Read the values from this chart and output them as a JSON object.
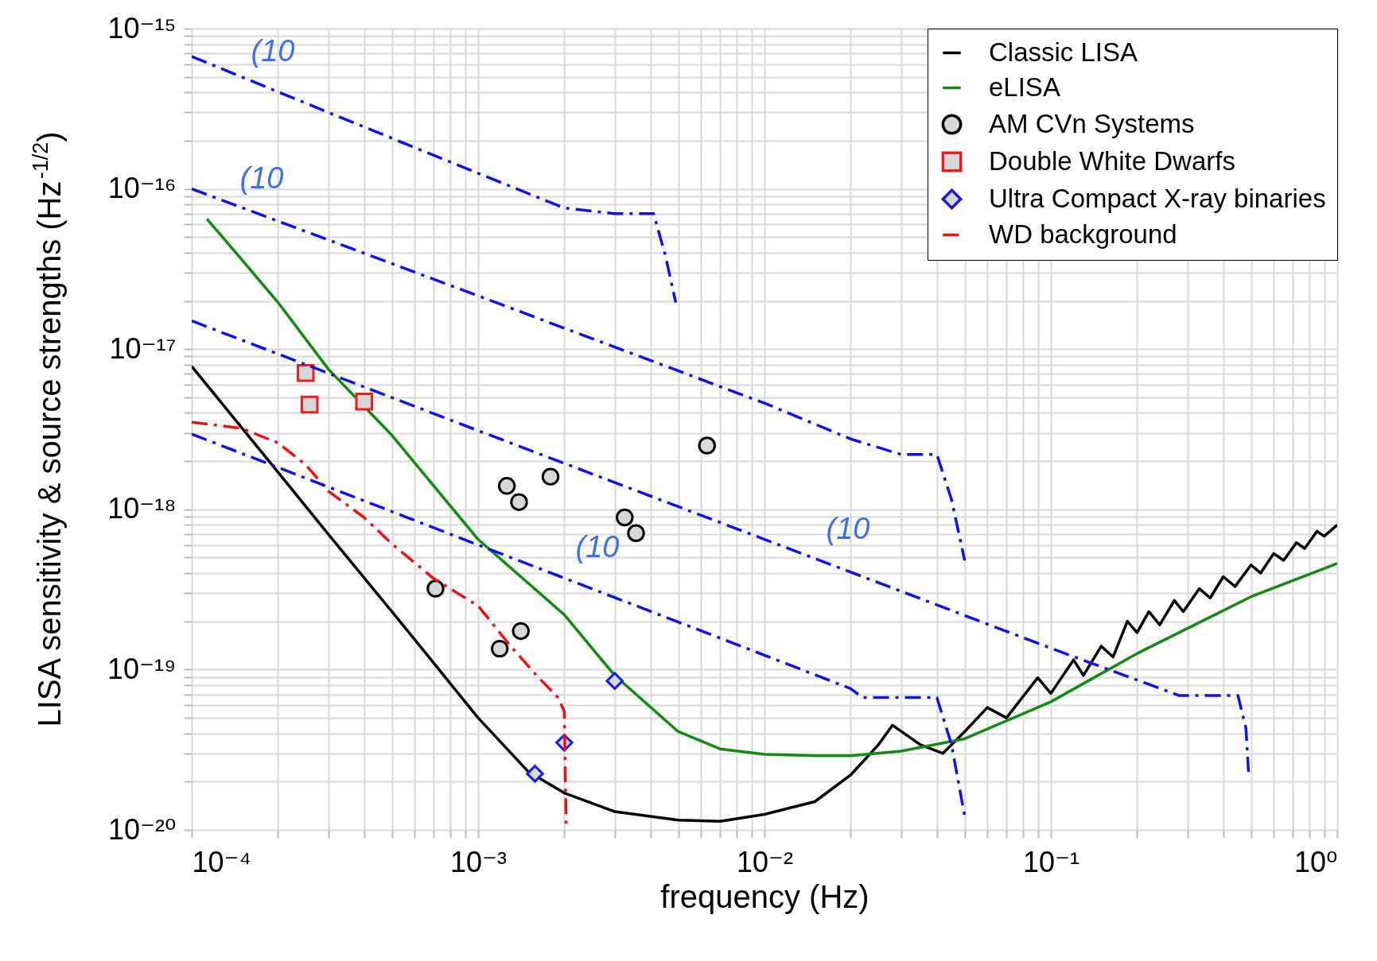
{
  "chart_data": {
    "type": "line",
    "xlabel": "frequency (Hz)",
    "ylabel": "LISA sensitivity & source strengths (Hz$^{-1/2}$)",
    "log": "xy",
    "grid": true,
    "legend": "top right",
    "xlim": [
      0.0001,
      1
    ],
    "ylim": [
      1e-20,
      1e-15
    ],
    "xticks": [
      {
        "value": 0.0001,
        "label": "10⁻⁴"
      },
      {
        "value": 0.0002,
        "label": null
      },
      {
        "value": 0.0003,
        "label": null
      },
      {
        "value": 0.0004,
        "label": null
      },
      {
        "value": 0.0005,
        "label": null
      },
      {
        "value": 0.0006,
        "label": null
      },
      {
        "value": 0.0007,
        "label": null
      },
      {
        "value": 0.0008,
        "label": null
      },
      {
        "value": 0.0009,
        "label": null
      },
      {
        "value": 0.001,
        "label": "10⁻³"
      },
      {
        "value": 0.002,
        "label": null
      },
      {
        "value": 0.003,
        "label": null
      },
      {
        "value": 0.004,
        "label": null
      },
      {
        "value": 0.005,
        "label": null
      },
      {
        "value": 0.006,
        "label": null
      },
      {
        "value": 0.007,
        "label": null
      },
      {
        "value": 0.008,
        "label": null
      },
      {
        "value": 0.009,
        "label": null
      },
      {
        "value": 0.01,
        "label": "10⁻²"
      },
      {
        "value": 0.02,
        "label": null
      },
      {
        "value": 0.03,
        "label": null
      },
      {
        "value": 0.04,
        "label": null
      },
      {
        "value": 0.05,
        "label": null
      },
      {
        "value": 0.06,
        "label": null
      },
      {
        "value": 0.07,
        "label": null
      },
      {
        "value": 0.08,
        "label": null
      },
      {
        "value": 0.09,
        "label": null
      },
      {
        "value": 0.1,
        "label": "10⁻¹"
      },
      {
        "value": 0.2,
        "label": null
      },
      {
        "value": 0.3,
        "label": null
      },
      {
        "value": 0.4,
        "label": null
      },
      {
        "value": 0.5,
        "label": null
      },
      {
        "value": 0.6,
        "label": null
      },
      {
        "value": 0.7,
        "label": null
      },
      {
        "value": 0.8,
        "label": null
      },
      {
        "value": 0.9,
        "label": null
      },
      {
        "value": 1,
        "label": "10⁰"
      }
    ],
    "yticks": [
      {
        "value": 1e-20,
        "label": "10⁻²⁰"
      },
      {
        "value": 2e-20,
        "label": null
      },
      {
        "value": 3e-20,
        "label": null
      },
      {
        "value": 4e-20,
        "label": null
      },
      {
        "value": 5e-20,
        "label": null
      },
      {
        "value": 6e-20,
        "label": null
      },
      {
        "value": 7e-20,
        "label": null
      },
      {
        "value": 8e-20,
        "label": null
      },
      {
        "value": 9e-20,
        "label": null
      },
      {
        "value": 1e-19,
        "label": "10⁻¹⁹"
      },
      {
        "value": 2e-19,
        "label": null
      },
      {
        "value": 3e-19,
        "label": null
      },
      {
        "value": 4e-19,
        "label": null
      },
      {
        "value": 5e-19,
        "label": null
      },
      {
        "value": 6e-19,
        "label": null
      },
      {
        "value": 7e-19,
        "label": null
      },
      {
        "value": 8e-19,
        "label": null
      },
      {
        "value": 9e-19,
        "label": null
      },
      {
        "value": 1e-18,
        "label": "10⁻¹⁸"
      },
      {
        "value": 2e-18,
        "label": null
      },
      {
        "value": 3e-18,
        "label": null
      },
      {
        "value": 4e-18,
        "label": null
      },
      {
        "value": 5e-18,
        "label": null
      },
      {
        "value": 6e-18,
        "label": null
      },
      {
        "value": 7e-18,
        "label": null
      },
      {
        "value": 8e-18,
        "label": null
      },
      {
        "value": 9e-18,
        "label": null
      },
      {
        "value": 1e-17,
        "label": "10⁻¹⁷"
      },
      {
        "value": 2e-17,
        "label": null
      },
      {
        "value": 3e-17,
        "label": null
      },
      {
        "value": 4e-17,
        "label": null
      },
      {
        "value": 5e-17,
        "label": null
      },
      {
        "value": 6e-17,
        "label": null
      },
      {
        "value": 7e-17,
        "label": null
      },
      {
        "value": 8e-17,
        "label": null
      },
      {
        "value": 9e-17,
        "label": null
      },
      {
        "value": 1e-16,
        "label": "10⁻¹⁶"
      },
      {
        "value": 2e-16,
        "label": null
      },
      {
        "value": 3e-16,
        "label": null
      },
      {
        "value": 4e-16,
        "label": null
      },
      {
        "value": 5e-16,
        "label": null
      },
      {
        "value": 6e-16,
        "label": null
      },
      {
        "value": 7e-16,
        "label": null
      },
      {
        "value": 8e-16,
        "label": null
      },
      {
        "value": 9e-16,
        "label": null
      },
      {
        "value": 1e-15,
        "label": "10⁻¹⁵"
      }
    ],
    "series": [
      {
        "name": "Classic LISA",
        "color": "#000000",
        "line_style": "solid",
        "marker": "none",
        "x": [
          0.0001,
          0.0002,
          0.0003,
          0.0005,
          0.0007,
          0.001,
          0.0015,
          0.002,
          0.003,
          0.005,
          0.007,
          0.01,
          0.015,
          0.02,
          0.025,
          0.028,
          0.035,
          0.042,
          0.05,
          0.06,
          0.07,
          0.09,
          0.1,
          0.12,
          0.13,
          0.15,
          0.165,
          0.185,
          0.2,
          0.22,
          0.24,
          0.27,
          0.29,
          0.33,
          0.36,
          0.4,
          0.44,
          0.5,
          0.54,
          0.6,
          0.65,
          0.72,
          0.77,
          0.85,
          0.9,
          1
        ],
        "values": [
          7.8e-18,
          1.71e-18,
          7e-19,
          2.3e-19,
          1.1e-19,
          5e-20,
          2.3e-20,
          1.7e-20,
          1.3e-20,
          1.15e-20,
          1.13e-20,
          1.25e-20,
          1.5e-20,
          2.2e-20,
          3.4e-20,
          4.5e-20,
          3.4e-20,
          3e-20,
          4.1e-20,
          5.8e-20,
          5e-20,
          8.9e-20,
          7.1e-20,
          1.15e-19,
          9.2e-20,
          1.4e-19,
          1.2e-19,
          2e-19,
          1.7e-19,
          2.3e-19,
          1.9e-19,
          2.7e-19,
          2.3e-19,
          3.2e-19,
          2.8e-19,
          3.8e-19,
          3.3e-19,
          4.5e-19,
          4e-19,
          5.3e-19,
          4.8e-19,
          6.2e-19,
          5.7e-19,
          7.3e-19,
          6.8e-19,
          8e-19
        ]
      },
      {
        "name": "eLISA",
        "color": "#138a13",
        "line_style": "solid",
        "marker": "none",
        "x": [
          0.000113,
          0.00015,
          0.0002,
          0.0003,
          0.0005,
          0.001,
          0.002,
          0.003,
          0.005,
          0.007,
          0.01,
          0.015,
          0.02,
          0.03,
          0.05,
          0.1,
          0.2,
          0.5,
          1
        ],
        "values": [
          6.5e-17,
          3.6e-17,
          1.96e-17,
          7.5e-18,
          2.9e-18,
          6.5e-19,
          2.2e-19,
          9.2e-20,
          4.1e-20,
          3.2e-20,
          2.96e-20,
          2.9e-20,
          2.9e-20,
          3.1e-20,
          3.7e-20,
          6.3e-20,
          1.26e-19,
          2.85e-19,
          4.6e-19
        ]
      },
      {
        "name": "AM CVn Systems",
        "type": "scatter",
        "color": "#000000",
        "marker": "circle",
        "x": [
          0.00071,
          0.00119,
          0.00141,
          0.00126,
          0.00139,
          0.00179,
          0.00325,
          0.00356,
          0.0063
        ],
        "values": [
          3.2e-19,
          1.35e-19,
          1.74e-19,
          1.4e-18,
          1.11e-18,
          1.6e-18,
          8.9e-19,
          7.1e-19,
          2.5e-18
        ]
      },
      {
        "name": "Double White Dwarfs",
        "type": "scatter",
        "color": "#ee1c1c",
        "marker": "square",
        "x": [
          0.00025,
          0.000258,
          0.0004
        ],
        "values": [
          7.1e-18,
          4.5e-18,
          4.7e-18
        ]
      },
      {
        "name": "Ultra Compact X-ray binaries",
        "type": "scatter",
        "color": "#1a1aee",
        "marker": "diamond",
        "x": [
          0.003,
          0.002,
          0.00158
        ],
        "values": [
          8.5e-20,
          3.5e-20,
          2.24e-20
        ]
      },
      {
        "name": "WD background",
        "color": "#ee1111",
        "line_style": "dashed",
        "marker": "none",
        "x": [
          0.0001,
          0.00015,
          0.0002,
          0.00025,
          0.0003,
          0.0004,
          0.0005,
          0.0007,
          0.001,
          0.0013,
          0.0016,
          0.0019,
          0.002,
          0.00203
        ],
        "values": [
          3.5e-18,
          3.2e-18,
          2.6e-18,
          1.9e-18,
          1.3e-18,
          8.9e-19,
          6.1e-19,
          3.7e-19,
          2.5e-19,
          1.4e-19,
          9.2e-20,
          6.7e-20,
          5.5e-20,
          1.05e-20
        ]
      },
      {
        "type": "line",
        "color": "#1010f0",
        "line_style": "dashed",
        "marker": "none",
        "x": [
          0.0001,
          0.0003,
          0.001,
          0.002,
          0.003,
          0.0041,
          0.0045,
          0.0049
        ],
        "values": [
          6.7e-16,
          3e-16,
          1.25e-16,
          7.6e-17,
          7e-17,
          7e-17,
          3.9e-17,
          1.95e-17
        ]
      },
      {
        "type": "line",
        "color": "#1010f0",
        "line_style": "dashed",
        "marker": "none",
        "x": [
          0.0001,
          0.001,
          0.01,
          0.02,
          0.03,
          0.04,
          0.045,
          0.05
        ],
        "values": [
          1e-16,
          2.15e-17,
          4.6e-18,
          2.75e-18,
          2.2e-18,
          2.2e-18,
          1.15e-18,
          4.8e-19
        ]
      },
      {
        "type": "line",
        "color": "#1010f0",
        "line_style": "dashed",
        "marker": "none",
        "x": [
          0.0001,
          0.001,
          0.01,
          0.1,
          0.28,
          0.45,
          0.48,
          0.49
        ],
        "values": [
          1.5e-17,
          3.1e-18,
          6.5e-19,
          1.36e-19,
          6.9e-20,
          6.9e-20,
          4.3e-20,
          2.3e-20
        ]
      },
      {
        "type": "line",
        "color": "#1010f0",
        "line_style": "dashed",
        "marker": "none",
        "x": [
          0.0001,
          0.001,
          0.01,
          0.02,
          0.022,
          0.04,
          0.045,
          0.05
        ],
        "values": [
          2.95e-18,
          6e-19,
          1.23e-19,
          7.6e-20,
          6.7e-20,
          6.7e-20,
          3.4e-20,
          1.22e-20
        ]
      }
    ],
    "annotations": [
      "(10",
      "(10",
      "(10",
      "(10"
    ]
  }
}
